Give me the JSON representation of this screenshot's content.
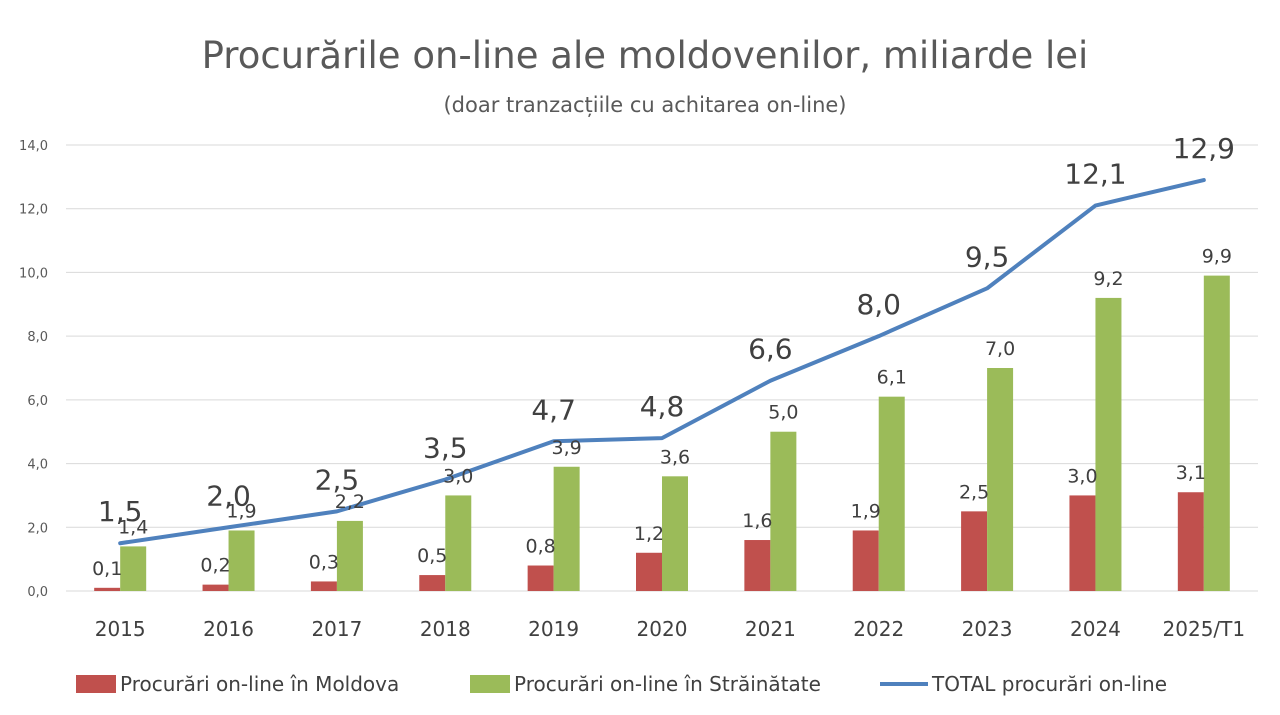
{
  "chart_data": {
    "type": "bar",
    "title": "Procurările on-line ale moldovenilor, miliarde lei",
    "subtitle": "(doar tranzacțiile cu achitarea on-line)",
    "categories": [
      "2015",
      "2016",
      "2017",
      "2018",
      "2019",
      "2020",
      "2021",
      "2022",
      "2023",
      "2024",
      "2025/T1"
    ],
    "ylim": [
      0,
      14
    ],
    "yticks": [
      "0,0",
      "2,0",
      "4,0",
      "6,0",
      "8,0",
      "10,0",
      "12,0",
      "14,0"
    ],
    "grid": true,
    "legend_position": "bottom",
    "series": [
      {
        "name": "Procurări on-line în Moldova",
        "kind": "bar",
        "color": "#c0504d",
        "values": [
          0.1,
          0.2,
          0.3,
          0.5,
          0.8,
          1.2,
          1.6,
          1.9,
          2.5,
          3.0,
          3.1
        ],
        "labels": [
          "0,1",
          "0,2",
          "0,3",
          "0,5",
          "0,8",
          "1,2",
          "1,6",
          "1,9",
          "2,5",
          "3,0",
          "3,1"
        ]
      },
      {
        "name": "Procurări on-line în Străinătate",
        "kind": "bar",
        "color": "#9bbb59",
        "values": [
          1.4,
          1.9,
          2.2,
          3.0,
          3.9,
          3.6,
          5.0,
          6.1,
          7.0,
          9.2,
          9.9
        ],
        "labels": [
          "1,4",
          "1,9",
          "2,2",
          "3,0",
          "3,9",
          "3,6",
          "5,0",
          "6,1",
          "7,0",
          "9,2",
          "9,9"
        ]
      },
      {
        "name": "TOTAL procurări on-line",
        "kind": "line",
        "color": "#4f81bd",
        "values": [
          1.5,
          2.0,
          2.5,
          3.5,
          4.7,
          4.8,
          6.6,
          8.0,
          9.5,
          12.1,
          12.9
        ],
        "labels": [
          "1,5",
          "2,0",
          "2,5",
          "3,5",
          "4,7",
          "4,8",
          "6,6",
          "8,0",
          "9,5",
          "12,1",
          "12,9"
        ]
      }
    ]
  }
}
